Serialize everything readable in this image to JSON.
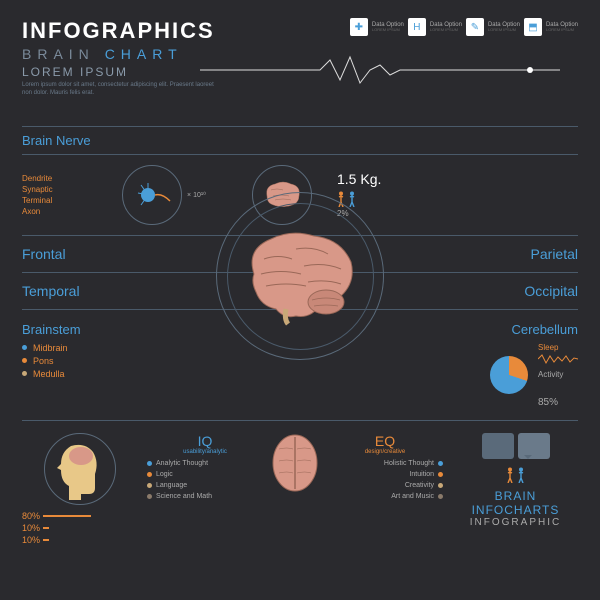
{
  "header": {
    "title": "INFOGRAPHICS",
    "subtitle_brain": "BRAIN",
    "subtitle_chart": "CHART",
    "lorem": "LOREM IPSUM",
    "desc": "Lorem ipsum dolor sit amet, consectetur adipiscing elit. Praesent laoreet non dolor. Mauris felis erat."
  },
  "data_options": [
    {
      "icon": "✚",
      "color": "#4a9ed8",
      "title": "Data Option",
      "sub": "LOREM IPSUM"
    },
    {
      "icon": "H",
      "color": "#4a9ed8",
      "title": "Data Option",
      "sub": "LOREM IPSUM"
    },
    {
      "icon": "✎",
      "color": "#4a9ed8",
      "title": "Data Option",
      "sub": "LOREM IPSUM"
    },
    {
      "icon": "⬒",
      "color": "#4a9ed8",
      "title": "Data Option",
      "sub": "LOREM IPSUM"
    }
  ],
  "nerve": {
    "label": "Brain Nerve",
    "items": [
      "Dendrite",
      "Synaptic",
      "Terminal",
      "Axon"
    ],
    "exponent": "× 10¹⁰"
  },
  "weight": {
    "value": "1.5 Kg.",
    "pct": "2%",
    "human_colors": [
      "#e88a3a",
      "#4a9ed8"
    ]
  },
  "lobes": {
    "left": [
      "Frontal",
      "Temporal"
    ],
    "right": [
      "Parietal",
      "Occipital"
    ]
  },
  "brainstem": {
    "label": "Brainstem",
    "items": [
      {
        "name": "Midbrain",
        "color": "#4a9ed8"
      },
      {
        "name": "Pons",
        "color": "#e88a3a"
      },
      {
        "name": "Medulla",
        "color": "#c8a878"
      }
    ]
  },
  "cerebellum": {
    "label": "Cerebellum",
    "sleep": "Sleep",
    "activity": "Activity",
    "pct": "85%",
    "pie": {
      "orange": 30,
      "blue": 70,
      "colors": [
        "#e88a3a",
        "#4a9ed8"
      ]
    }
  },
  "head": {
    "pcts": [
      "80%",
      "10%",
      "10%"
    ]
  },
  "iq": {
    "title": "IQ",
    "sub": "usability/analytic",
    "items": [
      {
        "name": "Analytic Thought",
        "color": "#4a9ed8"
      },
      {
        "name": "Logic",
        "color": "#e88a3a"
      },
      {
        "name": "Language",
        "color": "#c8a878"
      },
      {
        "name": "Science and Math",
        "color": "#8a7a6a"
      }
    ]
  },
  "eq": {
    "title": "EQ",
    "sub": "design/creative",
    "items": [
      {
        "name": "Holistic Thought",
        "color": "#4a9ed8"
      },
      {
        "name": "Intuition",
        "color": "#e88a3a"
      },
      {
        "name": "Creativity",
        "color": "#c8a878"
      },
      {
        "name": "Art and Music",
        "color": "#8a7a6a"
      }
    ]
  },
  "info": {
    "title": "BRAIN",
    "sub1": "INFOCHARTS",
    "sub2": "INFOGRAPHIC",
    "human_colors": [
      "#e88a3a",
      "#4a9ed8"
    ]
  },
  "colors": {
    "bg": "#2a2a2e",
    "blue": "#4a9ed8",
    "orange": "#e88a3a",
    "gray": "#7a8a9a",
    "line": "#4a5a6a",
    "brain_pink": "#d89888",
    "brain_dark": "#4a3838"
  }
}
